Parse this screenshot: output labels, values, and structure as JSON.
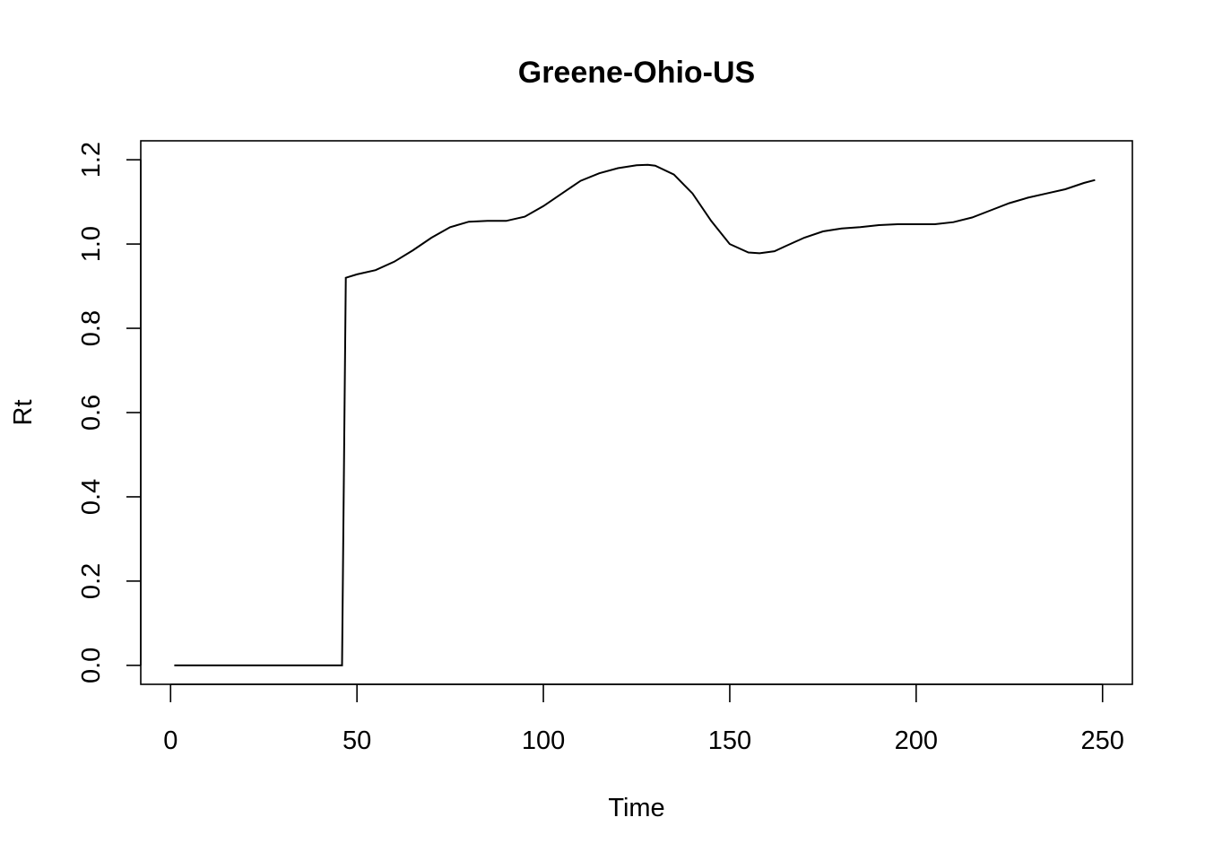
{
  "chart_data": {
    "type": "line",
    "title": "Greene-Ohio-US",
    "xlabel": "Time",
    "ylabel": "Rt",
    "xlim": [
      -8,
      258
    ],
    "ylim": [
      -0.045,
      1.245
    ],
    "x_ticks": [
      0,
      50,
      100,
      150,
      200,
      250
    ],
    "y_ticks": [
      0.0,
      0.2,
      0.4,
      0.6,
      0.8,
      1.0,
      1.2
    ],
    "x_tick_labels": [
      "0",
      "50",
      "100",
      "150",
      "200",
      "250"
    ],
    "y_tick_labels": [
      "0.0",
      "0.2",
      "0.4",
      "0.6",
      "0.8",
      "1.0",
      "1.2"
    ],
    "grid": false,
    "legend": "none",
    "line_color": "#000000",
    "series": [
      {
        "x": [
          1,
          10,
          20,
          30,
          40,
          46,
          47,
          50,
          55,
          60,
          65,
          70,
          75,
          80,
          85,
          90,
          95,
          100,
          105,
          110,
          115,
          120,
          125,
          128,
          130,
          135,
          140,
          145,
          150,
          155,
          158,
          162,
          165,
          170,
          175,
          180,
          185,
          190,
          195,
          200,
          205,
          210,
          215,
          220,
          225,
          230,
          235,
          240,
          245,
          248
        ],
        "y": [
          0,
          0,
          0,
          0,
          0,
          0,
          0.92,
          0.928,
          0.938,
          0.958,
          0.985,
          1.015,
          1.04,
          1.053,
          1.055,
          1.055,
          1.065,
          1.09,
          1.12,
          1.15,
          1.168,
          1.18,
          1.187,
          1.188,
          1.186,
          1.165,
          1.12,
          1.055,
          1.0,
          0.98,
          0.978,
          0.983,
          0.995,
          1.015,
          1.03,
          1.037,
          1.04,
          1.045,
          1.047,
          1.047,
          1.047,
          1.052,
          1.063,
          1.08,
          1.097,
          1.11,
          1.12,
          1.13,
          1.145,
          1.152
        ]
      }
    ]
  }
}
